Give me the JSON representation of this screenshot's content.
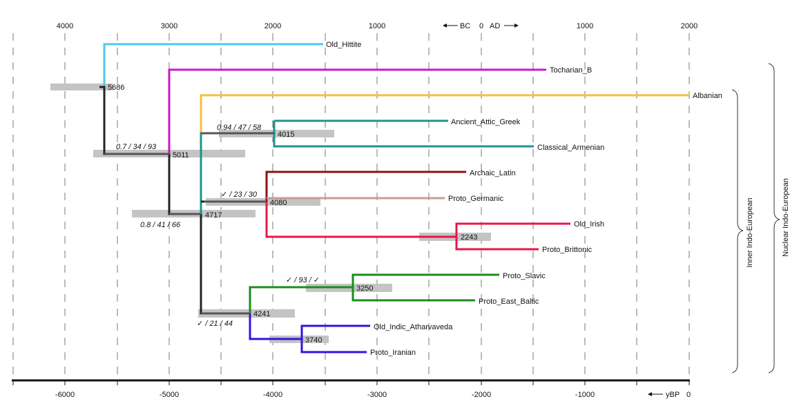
{
  "top_axis": {
    "ticks": [
      "4000",
      "3000",
      "2000",
      "1000",
      "1000",
      "2000"
    ],
    "bc_label": "BC",
    "zero_label": "0",
    "ad_label": "AD"
  },
  "bottom_axis": {
    "ticks": [
      "-6000",
      "-5000",
      "-4000",
      "-3000",
      "-2000",
      "-1000"
    ],
    "unit_label": "yBP",
    "zero_label": "0"
  },
  "leaves": [
    {
      "label": "Old_Hittite",
      "color": "#4cc6ef"
    },
    {
      "label": "Tocharian_B",
      "color": "#cc16c9"
    },
    {
      "label": "Albanian",
      "color": "#f7bf3d"
    },
    {
      "label": "Ancient_Attic_Greek",
      "color": "#1b948f"
    },
    {
      "label": "Classical_Armenian",
      "color": "#1b948f"
    },
    {
      "label": "Archaic_Latin",
      "color": "#8c1010"
    },
    {
      "label": "Proto_Germanic",
      "color": "#c99a9a"
    },
    {
      "label": "Old_Irish",
      "color": "#e8164a"
    },
    {
      "label": "Proto_Brittonic",
      "color": "#e8164a"
    },
    {
      "label": "Proto_Slavic",
      "color": "#1b8c1b"
    },
    {
      "label": "Proto_East_Baltic",
      "color": "#1b8c1b"
    },
    {
      "label": "Old_Indic_Atharvaveda",
      "color": "#3412e0"
    },
    {
      "label": "Proto_Iranian",
      "color": "#3412e0"
    }
  ],
  "node_ages": [
    "5686",
    "5011",
    "4717",
    "4015",
    "4080",
    "2243",
    "3250",
    "4241",
    "3740"
  ],
  "support_labels": [
    "0.7 / 34 / 93",
    "0.8 / 41 / 66",
    "0.94 / 47 / 58",
    "✓ / 23 / 30",
    "✓ / 93 / ✓",
    "✓ / 21 / 44"
  ],
  "clades": {
    "inner": "Inner Indo-European",
    "nuclear": "Nuclear Indo-European"
  },
  "colors": {
    "trunk": "#222222",
    "interval": "#c4c4c4",
    "gridline": "#777777"
  }
}
